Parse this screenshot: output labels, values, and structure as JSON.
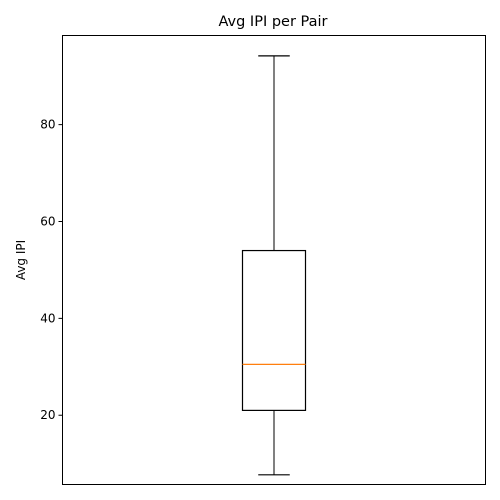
{
  "chart_data": {
    "type": "boxplot",
    "title": "Avg IPI per Pair",
    "xlabel": "",
    "ylabel": "Avg IPI",
    "ylim": [
      5.7,
      98.4
    ],
    "yticks": [
      20,
      40,
      60,
      80
    ],
    "grid": false,
    "boxes": [
      {
        "whisker_low": 7.7,
        "q1": 21.0,
        "median": 30.5,
        "q3": 54.0,
        "whisker_high": 94.2
      }
    ],
    "colors": {
      "box": "#000000",
      "median": "#ff7f0e",
      "axes": "#000000"
    }
  }
}
